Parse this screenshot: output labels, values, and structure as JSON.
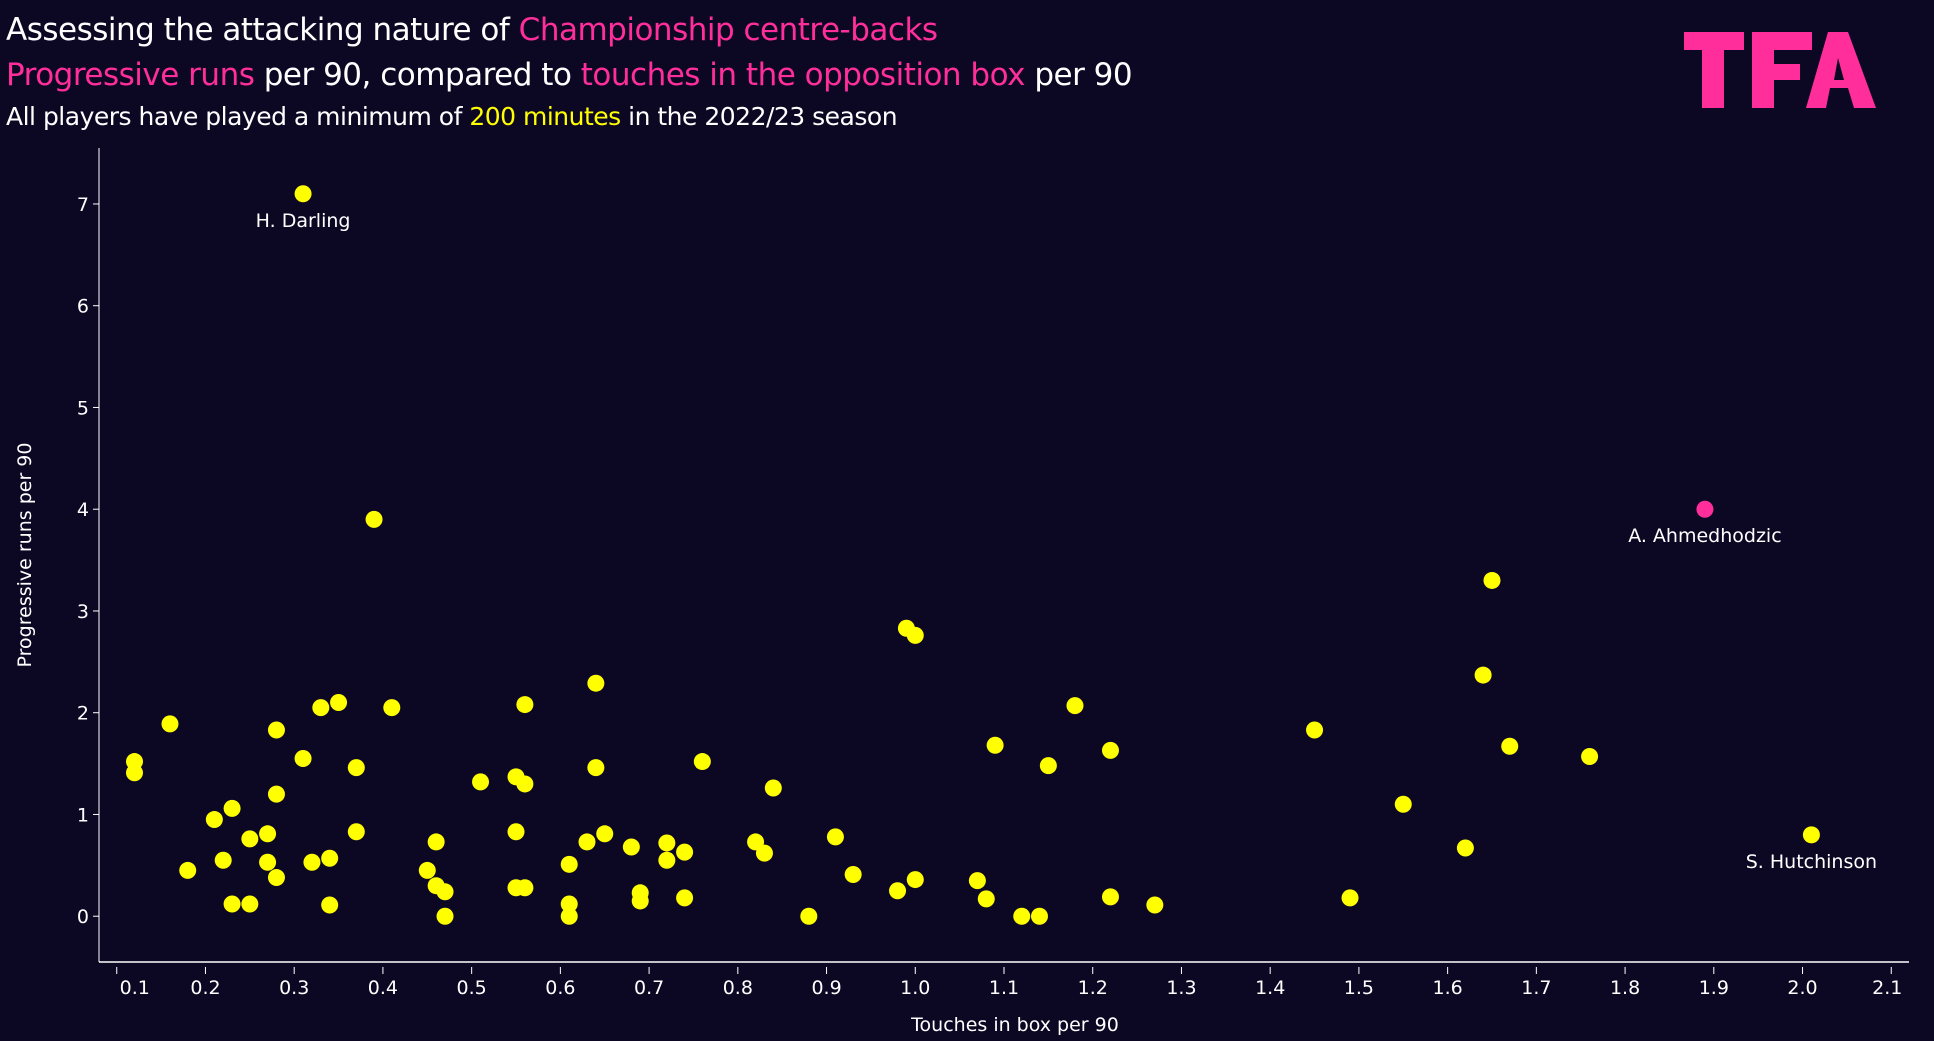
{
  "header": {
    "line1": [
      "Assessing the attacking nature of ",
      "Championship centre-backs"
    ],
    "line2": [
      "Progressive runs",
      " per 90, compared to ",
      "touches in the opposition box",
      " per 90"
    ],
    "line3": [
      "All players have played a minimum of ",
      "200 minutes",
      " in the 2022/23 season"
    ]
  },
  "logo_text": "TFA",
  "colors": {
    "background": "#0c0824",
    "highlight": "#ff2e9a",
    "default_point": "#ffff00",
    "axis": "#ffffff"
  },
  "chart_data": {
    "type": "scatter",
    "title": "Assessing the attacking nature of Championship centre-backs",
    "xlabel": "Touches in box per 90",
    "ylabel": "Progressive runs per 90",
    "xlim": [
      0.08,
      2.12
    ],
    "ylim": [
      -0.45,
      7.55
    ],
    "xticks": [
      "0.1",
      "0.2",
      "0.3",
      "0.4",
      "0.5",
      "0.6",
      "0.7",
      "0.8",
      "0.9",
      "1.0",
      "1.1",
      "1.2",
      "1.3",
      "1.4",
      "1.5",
      "1.6",
      "1.7",
      "1.8",
      "1.9",
      "2.0",
      "2.1"
    ],
    "yticks": [
      "0",
      "1",
      "2",
      "3",
      "4",
      "5",
      "6",
      "7"
    ],
    "grid": false,
    "annotations": [
      {
        "label": "H. Darling",
        "x": 0.31,
        "y": 7.1
      },
      {
        "label": "A. Ahmedhodzic",
        "x": 1.89,
        "y": 4.0
      },
      {
        "label": "S. Hutchinson",
        "x": 2.01,
        "y": 0.8
      }
    ],
    "highlighted": [
      {
        "name": "A. Ahmedhodzic",
        "x": 1.89,
        "y": 4.0
      }
    ],
    "points": [
      [
        0.31,
        7.1
      ],
      [
        0.39,
        3.9
      ],
      [
        2.01,
        0.8
      ],
      [
        1.65,
        3.3
      ],
      [
        1.64,
        2.37
      ],
      [
        1.67,
        1.67
      ],
      [
        1.76,
        1.57
      ],
      [
        1.62,
        0.67
      ],
      [
        1.55,
        1.1
      ],
      [
        1.45,
        1.83
      ],
      [
        1.49,
        0.18
      ],
      [
        1.27,
        0.11
      ],
      [
        1.22,
        0.19
      ],
      [
        1.22,
        1.63
      ],
      [
        1.18,
        2.07
      ],
      [
        1.15,
        1.48
      ],
      [
        1.09,
        1.68
      ],
      [
        1.07,
        0.35
      ],
      [
        1.08,
        0.17
      ],
      [
        1.12,
        0
      ],
      [
        1.14,
        0
      ],
      [
        0.99,
        2.83
      ],
      [
        1.0,
        2.76
      ],
      [
        1.0,
        0.36
      ],
      [
        0.98,
        0.25
      ],
      [
        0.91,
        0.78
      ],
      [
        0.93,
        0.41
      ],
      [
        0.88,
        0
      ],
      [
        0.84,
        1.26
      ],
      [
        0.82,
        0.73
      ],
      [
        0.83,
        0.62
      ],
      [
        0.76,
        1.52
      ],
      [
        0.74,
        0.63
      ],
      [
        0.74,
        0.18
      ],
      [
        0.72,
        0.72
      ],
      [
        0.72,
        0.55
      ],
      [
        0.69,
        0.23
      ],
      [
        0.69,
        0.15
      ],
      [
        0.68,
        0.68
      ],
      [
        0.65,
        0.81
      ],
      [
        0.63,
        0.73
      ],
      [
        0.64,
        2.29
      ],
      [
        0.64,
        1.46
      ],
      [
        0.61,
        0.51
      ],
      [
        0.61,
        0.12
      ],
      [
        0.61,
        0
      ],
      [
        0.56,
        2.08
      ],
      [
        0.56,
        1.3
      ],
      [
        0.55,
        1.37
      ],
      [
        0.55,
        0.83
      ],
      [
        0.55,
        0.28
      ],
      [
        0.56,
        0.28
      ],
      [
        0.51,
        1.32
      ],
      [
        0.46,
        0.73
      ],
      [
        0.45,
        0.45
      ],
      [
        0.46,
        0.3
      ],
      [
        0.47,
        0.24
      ],
      [
        0.47,
        0
      ],
      [
        0.41,
        2.05
      ],
      [
        0.37,
        1.46
      ],
      [
        0.37,
        0.83
      ],
      [
        0.35,
        2.1
      ],
      [
        0.33,
        2.05
      ],
      [
        0.31,
        1.55
      ],
      [
        0.34,
        0.57
      ],
      [
        0.32,
        0.53
      ],
      [
        0.34,
        0.11
      ],
      [
        0.28,
        1.83
      ],
      [
        0.28,
        1.2
      ],
      [
        0.28,
        0.38
      ],
      [
        0.27,
        0.81
      ],
      [
        0.27,
        0.53
      ],
      [
        0.25,
        0.76
      ],
      [
        0.25,
        0.12
      ],
      [
        0.23,
        1.06
      ],
      [
        0.23,
        0.12
      ],
      [
        0.21,
        0.95
      ],
      [
        0.22,
        0.55
      ],
      [
        0.18,
        0.45
      ],
      [
        0.16,
        1.89
      ],
      [
        0.12,
        1.52
      ],
      [
        0.12,
        1.41
      ]
    ]
  }
}
